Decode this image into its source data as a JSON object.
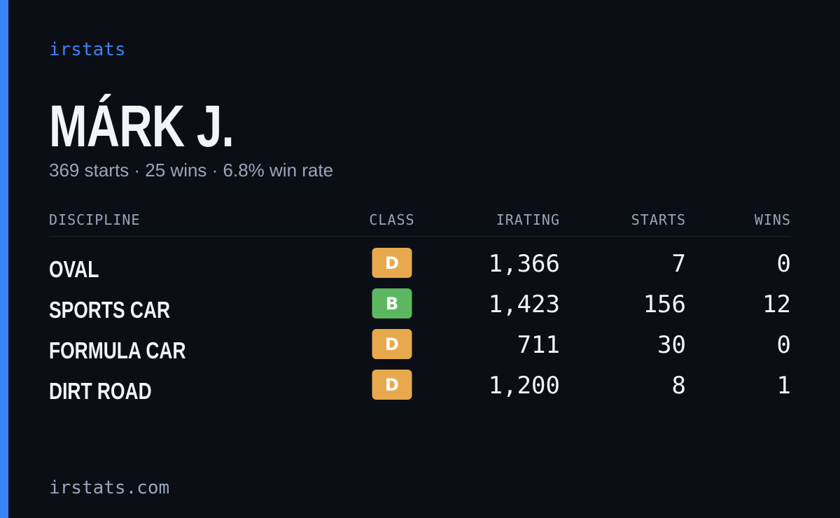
{
  "brand": "irstats",
  "profile": {
    "name": "MÁRK J.",
    "summary": "369 starts · 25 wins · 6.8% win rate"
  },
  "table": {
    "headers": [
      "DISCIPLINE",
      "CLASS",
      "IRATING",
      "STARTS",
      "WINS"
    ],
    "rows": [
      {
        "discipline": "OVAL",
        "class": "D",
        "class_color": "#e8a94e",
        "irating": "1,366",
        "starts": 7,
        "wins": 0
      },
      {
        "discipline": "SPORTS CAR",
        "class": "B",
        "class_color": "#5cb860",
        "irating": "1,423",
        "starts": 156,
        "wins": 12
      },
      {
        "discipline": "FORMULA CAR",
        "class": "D",
        "class_color": "#e8a94e",
        "irating": "711",
        "starts": 30,
        "wins": 0
      },
      {
        "discipline": "DIRT ROAD",
        "class": "D",
        "class_color": "#e8a94e",
        "irating": "1,200",
        "starts": 8,
        "wins": 1
      }
    ]
  },
  "footer": "irstats.com"
}
